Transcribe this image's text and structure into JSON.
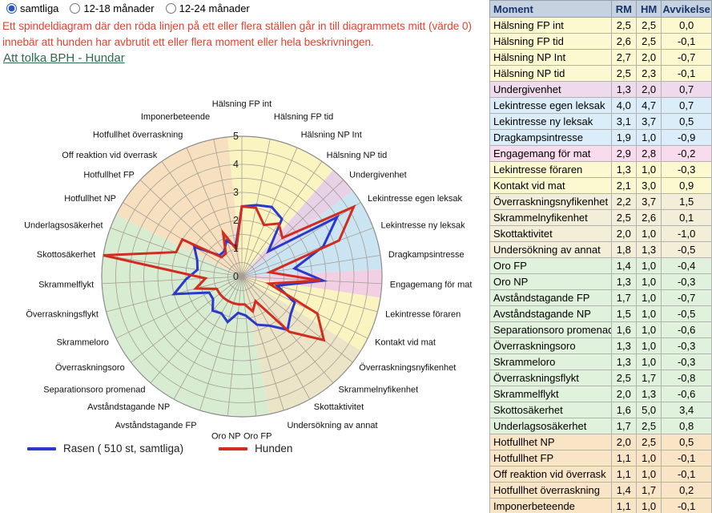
{
  "filters": {
    "options": [
      {
        "label": "samtliga",
        "selected": true
      },
      {
        "label": "12-18 månader",
        "selected": false
      },
      {
        "label": "12-24 månader",
        "selected": false
      }
    ]
  },
  "notice": {
    "lines": [
      "Ett spindeldiagram där den röda linjen på ett eller flera ställen går in till diagrammets mitt (värde 0)",
      "innebär att hunden har avbrutit ett eller flera moment eller hela beskrivningen."
    ]
  },
  "link": {
    "label": "Att tolka BPH - Hundar"
  },
  "legend": [
    {
      "label": "Rasen ( 510 st, samtliga)",
      "color": "#2b38cc"
    },
    {
      "label": "Hunden",
      "color": "#d22b20"
    }
  ],
  "colors": {
    "notice_text": "#e2422d",
    "link_text": "#2f6b4f",
    "grid": "#a49e94",
    "outer_ring": "#8b8b8b",
    "tick_text": "#222222",
    "groups": {
      "halsning": {
        "row": "#fcf8d0",
        "sector": "#faf5c0"
      },
      "undergivenhet": {
        "row": "#efd9ed",
        "sector": "#e7d1e7"
      },
      "lek": {
        "row": "#dbedf8",
        "sector": "#cbe4f2"
      },
      "mat": {
        "row": "#f8dbec",
        "sector": "#f2cfe2"
      },
      "forare": {
        "row": "#fcf8d0",
        "sector": "#faf5c0"
      },
      "nyfikenhet": {
        "row": "#f3eed8",
        "sector": "#ece4c6"
      },
      "oro": {
        "row": "#e0f1dc",
        "sector": "#d8ecd2"
      },
      "hot": {
        "row": "#f9e4c6",
        "sector": "#f6e0c0"
      }
    }
  },
  "table": {
    "headers": [
      "Moment",
      "RM",
      "HM",
      "Avvikelse"
    ],
    "rows": [
      {
        "moment": "Hälsning FP int",
        "rm": "2,5",
        "hm": "2,5",
        "avv": "0,0",
        "group": "halsning"
      },
      {
        "moment": "Hälsning FP tid",
        "rm": "2,6",
        "hm": "2,5",
        "avv": "-0,1",
        "group": "halsning"
      },
      {
        "moment": "Hälsning NP Int",
        "rm": "2,7",
        "hm": "2,0",
        "avv": "-0,7",
        "group": "halsning"
      },
      {
        "moment": "Hälsning NP tid",
        "rm": "2,5",
        "hm": "2,3",
        "avv": "-0,1",
        "group": "halsning"
      },
      {
        "moment": "Undergivenhet",
        "rm": "1,3",
        "hm": "2,0",
        "avv": "0,7",
        "group": "undergivenhet"
      },
      {
        "moment": "Lekintresse egen leksak",
        "rm": "4,0",
        "hm": "4,7",
        "avv": "0,7",
        "group": "lek"
      },
      {
        "moment": "Lekintresse ny leksak",
        "rm": "3,1",
        "hm": "3,7",
        "avv": "0,5",
        "group": "lek"
      },
      {
        "moment": "Dragkampsintresse",
        "rm": "1,9",
        "hm": "1,0",
        "avv": "-0,9",
        "group": "lek"
      },
      {
        "moment": "Engagemang för mat",
        "rm": "2,9",
        "hm": "2,8",
        "avv": "-0,2",
        "group": "mat"
      },
      {
        "moment": "Lekintresse föraren",
        "rm": "1,3",
        "hm": "1,0",
        "avv": "-0,3",
        "group": "forare"
      },
      {
        "moment": "Kontakt vid mat",
        "rm": "2,1",
        "hm": "3,0",
        "avv": "0,9",
        "group": "forare"
      },
      {
        "moment": "Överraskningsnyfikenhet",
        "rm": "2,2",
        "hm": "3,7",
        "avv": "1,5",
        "group": "nyfikenhet"
      },
      {
        "moment": "Skrammelnyfikenhet",
        "rm": "2,5",
        "hm": "2,6",
        "avv": "0,1",
        "group": "nyfikenhet"
      },
      {
        "moment": "Skottaktivitet",
        "rm": "2,0",
        "hm": "1,0",
        "avv": "-1,0",
        "group": "nyfikenhet"
      },
      {
        "moment": "Undersökning av annat",
        "rm": "1,8",
        "hm": "1,3",
        "avv": "-0,5",
        "group": "nyfikenhet"
      },
      {
        "moment": "Oro FP",
        "rm": "1,4",
        "hm": "1,0",
        "avv": "-0,4",
        "group": "oro"
      },
      {
        "moment": "Oro NP",
        "rm": "1,3",
        "hm": "1,0",
        "avv": "-0,3",
        "group": "oro"
      },
      {
        "moment": "Avståndstagande FP",
        "rm": "1,7",
        "hm": "1,0",
        "avv": "-0,7",
        "group": "oro"
      },
      {
        "moment": "Avståndstagande NP",
        "rm": "1,5",
        "hm": "1,0",
        "avv": "-0,5",
        "group": "oro"
      },
      {
        "moment": "Separationsoro promenad",
        "rm": "1,6",
        "hm": "1,0",
        "avv": "-0,6",
        "group": "oro"
      },
      {
        "moment": "Överraskningsoro",
        "rm": "1,3",
        "hm": "1,0",
        "avv": "-0,3",
        "group": "oro"
      },
      {
        "moment": "Skrammeloro",
        "rm": "1,3",
        "hm": "1,0",
        "avv": "-0,3",
        "group": "oro"
      },
      {
        "moment": "Överraskningsflykt",
        "rm": "2,5",
        "hm": "1,7",
        "avv": "-0,8",
        "group": "oro"
      },
      {
        "moment": "Skrammelflykt",
        "rm": "2,0",
        "hm": "1,3",
        "avv": "-0,6",
        "group": "oro"
      },
      {
        "moment": "Skottosäkerhet",
        "rm": "1,6",
        "hm": "5,0",
        "avv": "3,4",
        "group": "oro"
      },
      {
        "moment": "Underlagsosäkerhet",
        "rm": "1,7",
        "hm": "2,5",
        "avv": "0,8",
        "group": "oro"
      },
      {
        "moment": "Hotfullhet NP",
        "rm": "2,0",
        "hm": "2,5",
        "avv": "0,5",
        "group": "hot"
      },
      {
        "moment": "Hotfullhet FP",
        "rm": "1,1",
        "hm": "1,0",
        "avv": "-0,1",
        "group": "hot"
      },
      {
        "moment": "Off reaktion vid överrask",
        "rm": "1,1",
        "hm": "1,0",
        "avv": "-0,1",
        "group": "hot"
      },
      {
        "moment": "Hotfullhet överraskning",
        "rm": "1,4",
        "hm": "1,7",
        "avv": "0,2",
        "group": "hot"
      },
      {
        "moment": "Imponerbeteende",
        "rm": "1,1",
        "hm": "1,0",
        "avv": "-0,1",
        "group": "hot"
      }
    ]
  },
  "chart_data": {
    "type": "radar",
    "rmin": 0,
    "rmax": 5,
    "ticks": [
      0,
      1,
      2,
      3,
      4,
      5
    ],
    "ring_step": 0.5,
    "categories": [
      "Hälsning FP int",
      "Hälsning FP tid",
      "Hälsning NP Int",
      "Hälsning NP tid",
      "Undergivenhet",
      "Lekintresse egen leksak",
      "Lekintresse ny leksak",
      "Dragkampsintresse",
      "Engagemang för mat",
      "Lekintresse föraren",
      "Kontakt vid mat",
      "Överraskningsnyfikenhet",
      "Skrammelnyfikenhet",
      "Skottaktivitet",
      "Undersökning av annat",
      "Oro FP",
      "Oro NP",
      "Avståndstagande FP",
      "Avståndstagande NP",
      "Separationsoro promenad",
      "Överraskningsoro",
      "Skrammeloro",
      "Överraskningsflykt",
      "Skrammelflykt",
      "Skottosäkerhet",
      "Underlagsosäkerhet",
      "Hotfullhet NP",
      "Hotfullhet FP",
      "Off reaktion vid överrask",
      "Hotfullhet överraskning",
      "Imponerbeteende"
    ],
    "category_groups": [
      "halsning",
      "halsning",
      "halsning",
      "halsning",
      "undergivenhet",
      "lek",
      "lek",
      "lek",
      "mat",
      "forare",
      "forare",
      "nyfikenhet",
      "nyfikenhet",
      "nyfikenhet",
      "nyfikenhet",
      "oro",
      "oro",
      "oro",
      "oro",
      "oro",
      "oro",
      "oro",
      "oro",
      "oro",
      "oro",
      "oro",
      "hot",
      "hot",
      "hot",
      "hot",
      "hot"
    ],
    "series": [
      {
        "name": "Rasen ( 510 st, samtliga)",
        "color": "#2b38cc",
        "values": [
          2.5,
          2.6,
          2.7,
          2.5,
          1.3,
          4.0,
          3.1,
          1.9,
          2.9,
          1.3,
          2.1,
          2.2,
          2.5,
          2.0,
          1.8,
          1.4,
          1.3,
          1.7,
          1.5,
          1.6,
          1.3,
          1.3,
          2.5,
          2.0,
          1.6,
          1.7,
          2.0,
          1.1,
          1.1,
          1.4,
          1.1
        ]
      },
      {
        "name": "Hunden",
        "color": "#d22b20",
        "values": [
          2.5,
          2.5,
          2.0,
          2.3,
          2.0,
          4.7,
          3.7,
          1.0,
          2.8,
          1.0,
          3.0,
          3.7,
          2.6,
          1.0,
          1.3,
          1.0,
          1.0,
          1.0,
          1.0,
          1.0,
          1.0,
          1.0,
          1.7,
          1.3,
          5.0,
          2.5,
          2.5,
          1.0,
          1.0,
          1.7,
          1.0
        ]
      }
    ],
    "legend_position": "bottom-left",
    "grid": true
  }
}
